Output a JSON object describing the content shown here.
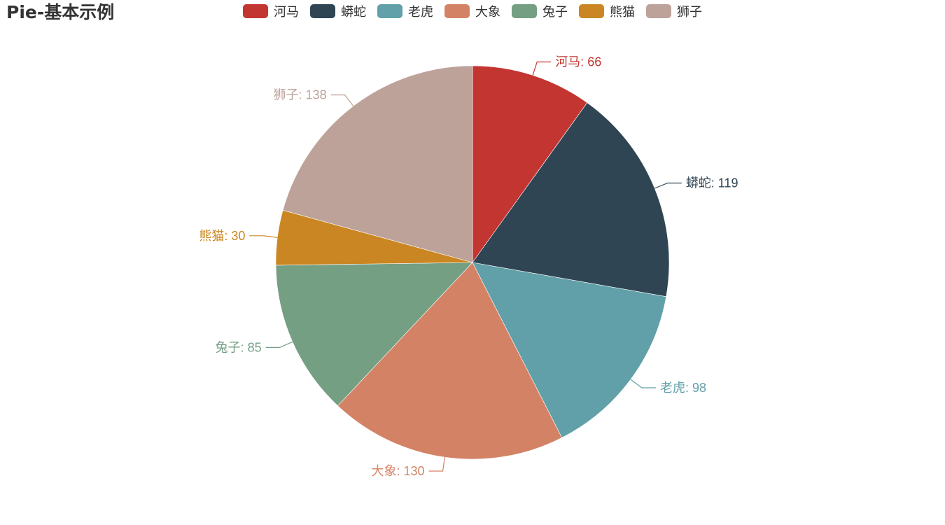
{
  "chart_data": {
    "type": "pie",
    "title": "Pie-基本示例",
    "legend_position": "top",
    "categories": [
      "河马",
      "蟒蛇",
      "老虎",
      "大象",
      "兔子",
      "熊猫",
      "狮子"
    ],
    "values": [
      66,
      119,
      98,
      130,
      85,
      30,
      138
    ],
    "colors": [
      "#c23531",
      "#2f4554",
      "#61a0a8",
      "#d48265",
      "#749f83",
      "#ca8622",
      "#bda29a"
    ],
    "labels": [
      "河马: 66",
      "蟒蛇: 119",
      "老虎: 98",
      "大象: 130",
      "兔子: 85",
      "熊猫: 30",
      "狮子: 138"
    ],
    "start_angle_deg": 90,
    "direction": "clockwise"
  }
}
